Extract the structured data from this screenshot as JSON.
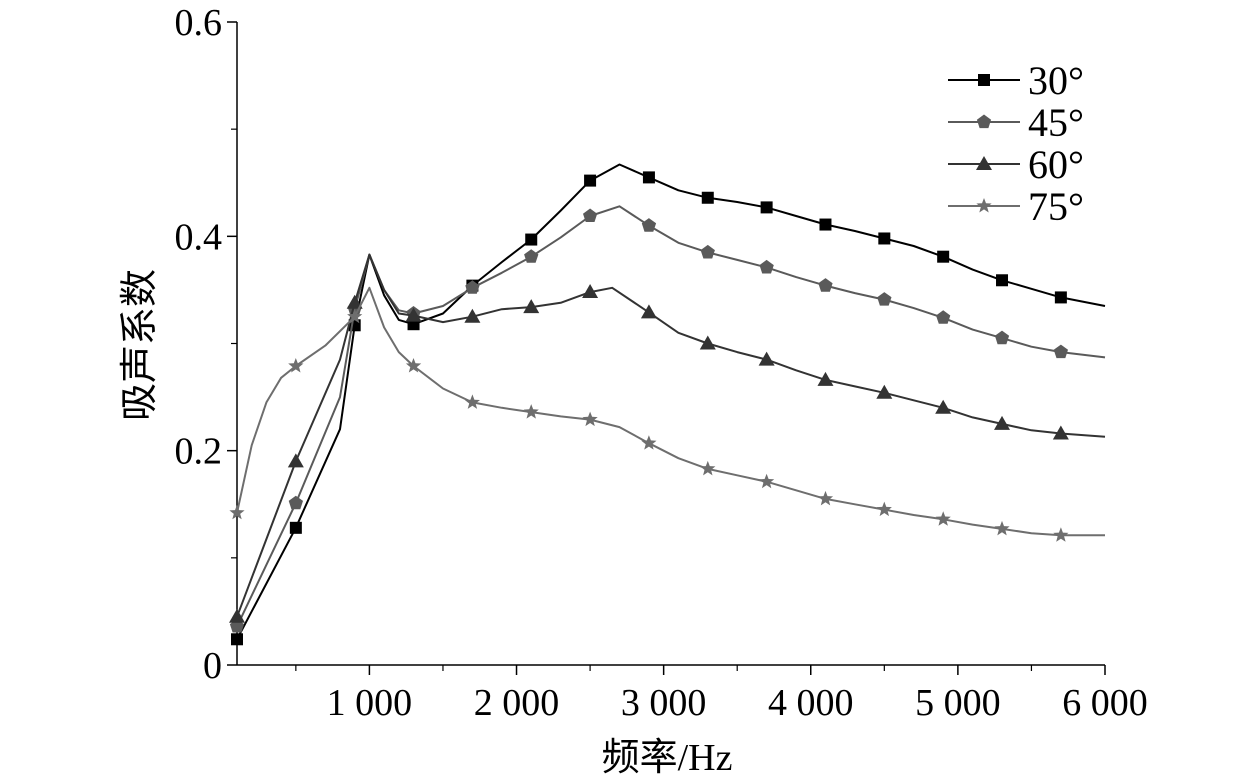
{
  "chart_data": {
    "type": "line",
    "xlabel": "频率/Hz",
    "ylabel": "吸声系数",
    "xlim": [
      100,
      6000
    ],
    "ylim": [
      0,
      0.6
    ],
    "x_ticks": [
      1000,
      2000,
      3000,
      4000,
      5000,
      6000
    ],
    "x_tick_labels": [
      "1 000",
      "2 000",
      "3 000",
      "4 000",
      "5 000",
      "6 000"
    ],
    "y_ticks": [
      0,
      0.2,
      0.4,
      0.6
    ],
    "y_tick_labels": [
      "0",
      "0.2",
      "0.4",
      "0.6"
    ],
    "legend_position": "top-right",
    "grid": false,
    "series": [
      {
        "name": "30°",
        "marker": "square",
        "color": "#000000",
        "x": [
          100,
          500,
          900,
          1300,
          1700,
          2100,
          2500,
          2900,
          3300,
          3700,
          4100,
          4500,
          4900,
          5300,
          5700
        ],
        "y": [
          0.024,
          0.128,
          0.317,
          0.318,
          0.354,
          0.397,
          0.452,
          0.455,
          0.436,
          0.427,
          0.411,
          0.398,
          0.381,
          0.359,
          0.343
        ],
        "curve": [
          [
            100,
            0.024
          ],
          [
            500,
            0.128
          ],
          [
            800,
            0.22
          ],
          [
            900,
            0.317
          ],
          [
            1000,
            0.383
          ],
          [
            1100,
            0.345
          ],
          [
            1200,
            0.322
          ],
          [
            1300,
            0.318
          ],
          [
            1500,
            0.328
          ],
          [
            1700,
            0.354
          ],
          [
            1900,
            0.376
          ],
          [
            2100,
            0.397
          ],
          [
            2300,
            0.424
          ],
          [
            2500,
            0.452
          ],
          [
            2700,
            0.467
          ],
          [
            2900,
            0.455
          ],
          [
            3100,
            0.443
          ],
          [
            3300,
            0.436
          ],
          [
            3500,
            0.432
          ],
          [
            3700,
            0.427
          ],
          [
            3900,
            0.419
          ],
          [
            4100,
            0.411
          ],
          [
            4300,
            0.405
          ],
          [
            4500,
            0.398
          ],
          [
            4700,
            0.391
          ],
          [
            4900,
            0.381
          ],
          [
            5100,
            0.369
          ],
          [
            5300,
            0.359
          ],
          [
            5500,
            0.351
          ],
          [
            5700,
            0.343
          ],
          [
            6000,
            0.335
          ]
        ]
      },
      {
        "name": "45°",
        "marker": "pentagon",
        "color": "#5a5a5a",
        "x": [
          100,
          500,
          900,
          1300,
          1700,
          2100,
          2500,
          2900,
          3300,
          3700,
          4100,
          4500,
          4900,
          5300,
          5700
        ],
        "y": [
          0.036,
          0.151,
          0.332,
          0.328,
          0.352,
          0.381,
          0.419,
          0.41,
          0.385,
          0.371,
          0.354,
          0.341,
          0.324,
          0.305,
          0.292
        ],
        "curve": [
          [
            100,
            0.036
          ],
          [
            500,
            0.151
          ],
          [
            800,
            0.25
          ],
          [
            900,
            0.332
          ],
          [
            1000,
            0.383
          ],
          [
            1100,
            0.35
          ],
          [
            1200,
            0.331
          ],
          [
            1300,
            0.328
          ],
          [
            1500,
            0.335
          ],
          [
            1700,
            0.352
          ],
          [
            1900,
            0.366
          ],
          [
            2100,
            0.381
          ],
          [
            2300,
            0.399
          ],
          [
            2500,
            0.419
          ],
          [
            2700,
            0.428
          ],
          [
            2900,
            0.41
          ],
          [
            3100,
            0.394
          ],
          [
            3300,
            0.385
          ],
          [
            3500,
            0.378
          ],
          [
            3700,
            0.371
          ],
          [
            3900,
            0.362
          ],
          [
            4100,
            0.354
          ],
          [
            4300,
            0.347
          ],
          [
            4500,
            0.341
          ],
          [
            4700,
            0.333
          ],
          [
            4900,
            0.324
          ],
          [
            5100,
            0.313
          ],
          [
            5300,
            0.305
          ],
          [
            5500,
            0.297
          ],
          [
            5700,
            0.292
          ],
          [
            6000,
            0.287
          ]
        ]
      },
      {
        "name": "60°",
        "marker": "triangle",
        "color": "#333333",
        "x": [
          100,
          500,
          900,
          1300,
          1700,
          2100,
          2500,
          2900,
          3300,
          3700,
          4100,
          4500,
          4900,
          5300,
          5700
        ],
        "y": [
          0.045,
          0.19,
          0.338,
          0.326,
          0.325,
          0.334,
          0.348,
          0.329,
          0.3,
          0.285,
          0.266,
          0.254,
          0.24,
          0.225,
          0.216
        ],
        "curve": [
          [
            100,
            0.045
          ],
          [
            500,
            0.19
          ],
          [
            800,
            0.285
          ],
          [
            900,
            0.338
          ],
          [
            1000,
            0.383
          ],
          [
            1100,
            0.35
          ],
          [
            1200,
            0.328
          ],
          [
            1300,
            0.326
          ],
          [
            1500,
            0.32
          ],
          [
            1700,
            0.325
          ],
          [
            1900,
            0.332
          ],
          [
            2100,
            0.334
          ],
          [
            2300,
            0.338
          ],
          [
            2500,
            0.348
          ],
          [
            2650,
            0.352
          ],
          [
            2900,
            0.329
          ],
          [
            3100,
            0.31
          ],
          [
            3300,
            0.3
          ],
          [
            3500,
            0.292
          ],
          [
            3700,
            0.285
          ],
          [
            3900,
            0.275
          ],
          [
            4100,
            0.266
          ],
          [
            4300,
            0.26
          ],
          [
            4500,
            0.254
          ],
          [
            4700,
            0.247
          ],
          [
            4900,
            0.24
          ],
          [
            5100,
            0.231
          ],
          [
            5300,
            0.225
          ],
          [
            5500,
            0.219
          ],
          [
            5700,
            0.216
          ],
          [
            6000,
            0.213
          ]
        ]
      },
      {
        "name": "75°",
        "marker": "star",
        "color": "#6e6e6e",
        "x": [
          100,
          500,
          900,
          1300,
          1700,
          2100,
          2500,
          2900,
          3300,
          3700,
          4100,
          4500,
          4900,
          5300,
          5700
        ],
        "y": [
          0.142,
          0.279,
          0.325,
          0.279,
          0.245,
          0.236,
          0.229,
          0.207,
          0.183,
          0.171,
          0.155,
          0.145,
          0.136,
          0.127,
          0.121
        ],
        "curve": [
          [
            100,
            0.142
          ],
          [
            200,
            0.205
          ],
          [
            300,
            0.245
          ],
          [
            400,
            0.268
          ],
          [
            500,
            0.279
          ],
          [
            700,
            0.298
          ],
          [
            900,
            0.325
          ],
          [
            1000,
            0.352
          ],
          [
            1100,
            0.315
          ],
          [
            1200,
            0.292
          ],
          [
            1300,
            0.279
          ],
          [
            1500,
            0.258
          ],
          [
            1700,
            0.245
          ],
          [
            1900,
            0.24
          ],
          [
            2100,
            0.236
          ],
          [
            2300,
            0.232
          ],
          [
            2500,
            0.229
          ],
          [
            2700,
            0.222
          ],
          [
            2900,
            0.207
          ],
          [
            3100,
            0.193
          ],
          [
            3300,
            0.183
          ],
          [
            3500,
            0.177
          ],
          [
            3700,
            0.171
          ],
          [
            3900,
            0.163
          ],
          [
            4100,
            0.155
          ],
          [
            4300,
            0.15
          ],
          [
            4500,
            0.145
          ],
          [
            4700,
            0.14
          ],
          [
            4900,
            0.136
          ],
          [
            5100,
            0.131
          ],
          [
            5300,
            0.127
          ],
          [
            5500,
            0.123
          ],
          [
            5700,
            0.121
          ],
          [
            6000,
            0.121
          ]
        ]
      }
    ]
  }
}
